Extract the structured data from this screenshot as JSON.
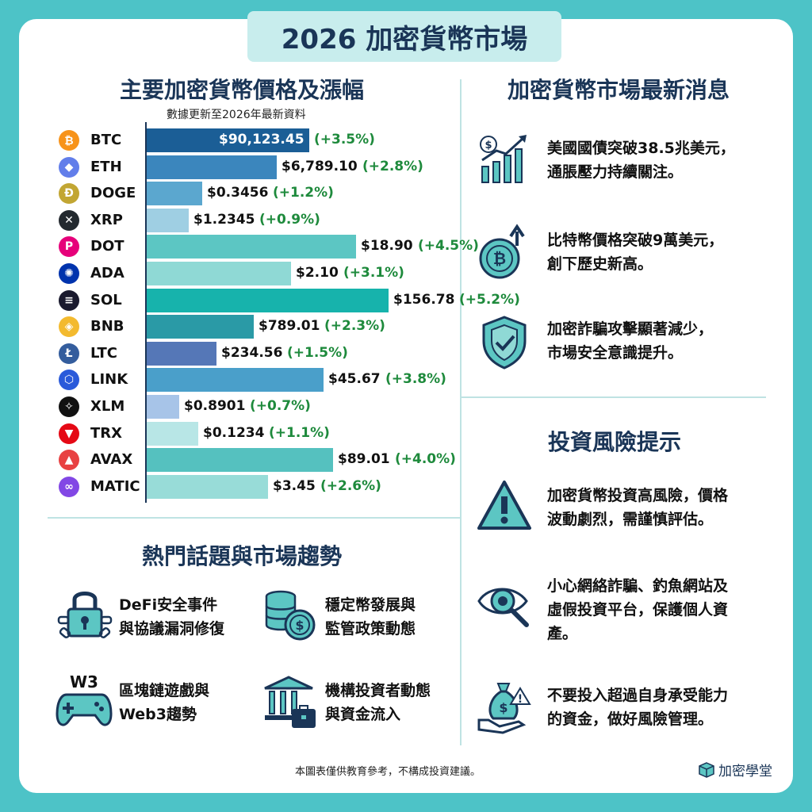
{
  "title": "2026 加密貨幣市場",
  "prices_section": {
    "title": "主要加密貨幣價格及漲幅",
    "note": "數據更新至2026年最新資料"
  },
  "chart_data": {
    "type": "bar",
    "orientation": "horizontal",
    "categories": [
      "BTC",
      "ETH",
      "DOGE",
      "XRP",
      "DOT",
      "ADA",
      "SOL",
      "BNB",
      "LTC",
      "LINK",
      "XLM",
      "TRX",
      "AVAX",
      "MATIC"
    ],
    "price_labels": [
      "$90,123.45",
      "$6,789.10",
      "$0.3456",
      "$1.2345",
      "$18.90",
      "$2.10",
      "$156.78",
      "$789.01",
      "$234.56",
      "$45.67",
      "$0.8901",
      "$0.1234",
      "$89.01",
      "$3.45"
    ],
    "change_labels": [
      "(+3.5%)",
      "(+2.8%)",
      "(+1.2%)",
      "(+0.9%)",
      "(+4.5%)",
      "(+3.1%)",
      "(+5.2%)",
      "(+2.3%)",
      "(+1.5%)",
      "(+3.8%)",
      "(+0.7%)",
      "(+1.1%)",
      "(+4.0%)",
      "(+2.6%)"
    ],
    "values": [
      3.5,
      2.8,
      1.2,
      0.9,
      4.5,
      3.1,
      5.2,
      2.3,
      1.5,
      3.8,
      0.7,
      1.1,
      4.0,
      2.6
    ],
    "bar_colors": [
      "#1b5e96",
      "#3b86bd",
      "#5ba7cf",
      "#9fcfe3",
      "#5cc6c3",
      "#8fd9d5",
      "#17b3ac",
      "#2a9aa6",
      "#5577b7",
      "#4a9fca",
      "#a7c4e8",
      "#b8e6e6",
      "#55c1bf",
      "#98dcd8"
    ],
    "coin_colors": [
      "#f7931a",
      "#627eea",
      "#c2a633",
      "#23292f",
      "#e6007a",
      "#0033ad",
      "#1a1a2e",
      "#f3ba2f",
      "#345d9d",
      "#2a5ada",
      "#111111",
      "#e50915",
      "#e84142",
      "#8247e5"
    ],
    "coin_glyphs": [
      "₿",
      "◆",
      "Ð",
      "✕",
      "P",
      "✺",
      "≡",
      "◈",
      "Ł",
      "⬡",
      "✧",
      "▼",
      "▲",
      "∞"
    ]
  },
  "news_section": {
    "title": "加密貨幣市場最新消息",
    "items": [
      {
        "line1": "美國國債突破38.5兆美元，",
        "line2": "通脹壓力持續關注。",
        "icon": "growth-chart-icon"
      },
      {
        "line1": "比特幣價格突破9萬美元，",
        "line2": "創下歷史新高。",
        "icon": "bitcoin-up-icon"
      },
      {
        "line1": "加密詐騙攻擊顯著減少，",
        "line2": "市場安全意識提升。",
        "icon": "shield-check-icon"
      }
    ]
  },
  "risk_section": {
    "title": "投資風險提示",
    "items": [
      {
        "line1": "加密貨幣投資高風險，價格",
        "line2": "波動劇烈，需謹慎評估。",
        "line3": "",
        "icon": "warning-icon"
      },
      {
        "line1": "小心網絡詐騙、釣魚網站及",
        "line2": "虛假投資平台，保護個人資",
        "line3": "產。",
        "icon": "eye-magnifier-icon"
      },
      {
        "line1": "不要投入超過自身承受能力",
        "line2": "的資金，做好風險管理。",
        "line3": "",
        "icon": "money-bag-icon"
      }
    ]
  },
  "trends_section": {
    "title": "熱門話題與市場趨勢",
    "topics": [
      {
        "line1": "DeFi安全事件",
        "line2": "與協議漏洞修復",
        "icon": "chain-lock-icon"
      },
      {
        "line1": "穩定幣發展與",
        "line2": "監管政策動態",
        "icon": "coin-stack-icon"
      },
      {
        "line1": "區塊鏈遊戲與",
        "line2": "Web3趨勢",
        "icon": "gamepad-icon",
        "badge": "W3"
      },
      {
        "line1": "機構投資者動態",
        "line2": "與資金流入",
        "icon": "bank-icon"
      }
    ]
  },
  "footer": {
    "disclaimer": "本圖表僅供教育參考，不構成投資建議。",
    "brand": "加密學堂"
  }
}
